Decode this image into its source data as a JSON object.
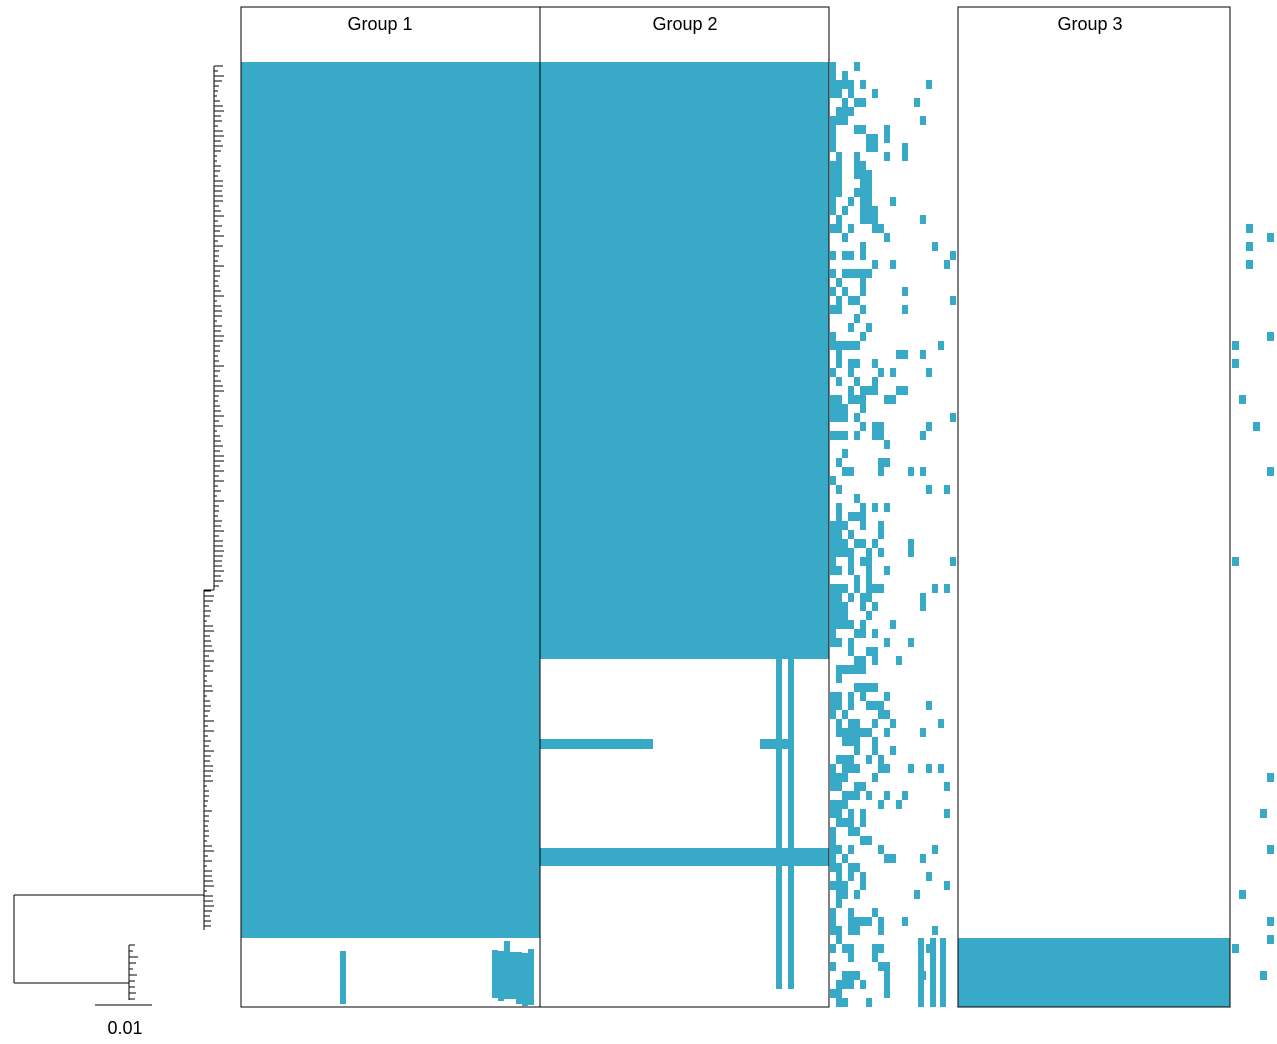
{
  "chart_data": {
    "type": "heatmap",
    "title": "",
    "xlabel": "",
    "ylabel": "",
    "groups": [
      "Group 1",
      "Group 2",
      "Group 3"
    ],
    "scale_bar_label": "0.01",
    "presence_color": "#38a9c6",
    "absence_color": "#ffffff",
    "legend": "none",
    "grid": false
  }
}
